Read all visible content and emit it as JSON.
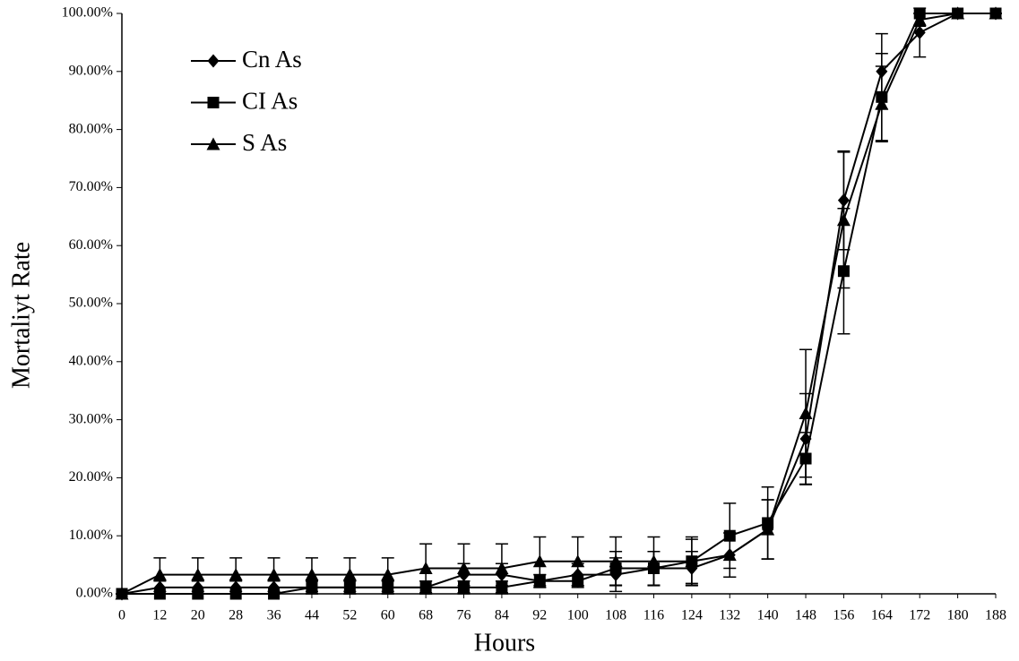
{
  "chart_data": {
    "type": "line",
    "x_label": "Hours",
    "y_label": "Mortaliyt Rate",
    "categories": [
      "0",
      "12",
      "20",
      "28",
      "36",
      "44",
      "52",
      "60",
      "68",
      "76",
      "84",
      "92",
      "100",
      "108",
      "116",
      "124",
      "132",
      "140",
      "148",
      "156",
      "164",
      "172",
      "180",
      "188"
    ],
    "series": [
      {
        "name": "Cn As",
        "color": "#000000",
        "marker": "diamond",
        "values": [
          0,
          1.1,
          1.1,
          1.1,
          1.1,
          1.1,
          1.1,
          1.1,
          1.1,
          3.3,
          3.3,
          2.2,
          3.3,
          3.3,
          4.4,
          4.4,
          6.7,
          11.1,
          26.7,
          67.8,
          90,
          96.7,
          100,
          100
        ],
        "errors": [
          0,
          1.1,
          1.1,
          1.1,
          1.1,
          1.1,
          1.1,
          1.1,
          1.1,
          1.9,
          1.9,
          1.1,
          1.9,
          2.9,
          2.9,
          2.9,
          3.8,
          5.1,
          7.8,
          8.5,
          6.5,
          4.2,
          0,
          0
        ]
      },
      {
        "name": "CI As",
        "color": "#000000",
        "marker": "square",
        "values": [
          0,
          0,
          0,
          0,
          0,
          1.1,
          1.1,
          1.1,
          1.1,
          1.1,
          1.1,
          2.2,
          2.2,
          4.4,
          4.4,
          5.6,
          10,
          12.2,
          23.3,
          55.6,
          85.6,
          100,
          100,
          100
        ],
        "errors": [
          0,
          0,
          0,
          0,
          0,
          1.1,
          1.1,
          1.1,
          1.1,
          1.1,
          1.1,
          1.1,
          1.1,
          2.9,
          2.9,
          3.8,
          5.6,
          6.2,
          4.5,
          10.8,
          7.5,
          0,
          0,
          0
        ]
      },
      {
        "name": "S As",
        "color": "#000000",
        "marker": "triangle",
        "values": [
          0,
          3.3,
          3.3,
          3.3,
          3.3,
          3.3,
          3.3,
          3.3,
          4.4,
          4.4,
          4.4,
          5.6,
          5.6,
          5.6,
          5.6,
          5.6,
          6.7,
          11.1,
          31.1,
          64.4,
          84.4,
          98.9,
          100,
          100
        ],
        "errors": [
          0,
          2.9,
          2.9,
          2.9,
          2.9,
          2.9,
          2.9,
          2.9,
          4.2,
          4.2,
          4.2,
          4.2,
          4.2,
          4.2,
          4.2,
          4.2,
          3.8,
          5.1,
          11,
          11.7,
          6.5,
          1.1,
          0,
          0
        ]
      }
    ],
    "ylim": [
      0,
      100
    ],
    "yticks": [
      {
        "value": 0,
        "label": "0.00%"
      },
      {
        "value": 10,
        "label": "10.00%"
      },
      {
        "value": 20,
        "label": "20.00%"
      },
      {
        "value": 30,
        "label": "30.00%"
      },
      {
        "value": 40,
        "label": "40.00%"
      },
      {
        "value": 50,
        "label": "50.00%"
      },
      {
        "value": 60,
        "label": "60.00%"
      },
      {
        "value": 70,
        "label": "70.00%"
      },
      {
        "value": 80,
        "label": "80.00%"
      },
      {
        "value": 90,
        "label": "90.00%"
      },
      {
        "value": 100,
        "label": "100.00%"
      }
    ],
    "grid": false,
    "legend": "top-left"
  }
}
